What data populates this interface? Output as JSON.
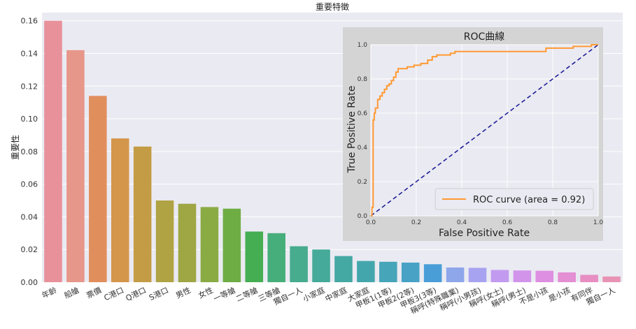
{
  "chart_data": [
    {
      "type": "bar",
      "title": "重要特徵",
      "xlabel": "",
      "ylabel": "重要性",
      "ylim": [
        0,
        0.165
      ],
      "yticks": [
        "0.00",
        "0.02",
        "0.04",
        "0.06",
        "0.08",
        "0.10",
        "0.12",
        "0.14",
        "0.16"
      ],
      "grid": true,
      "categories": [
        "年齡",
        "船艙",
        "票價",
        "C港口",
        "Q港口",
        "S港口",
        "男性",
        "女性",
        "一等艙",
        "二等艙",
        "三等艙",
        "獨自一人",
        "小家庭",
        "中家庭",
        "大家庭",
        "甲板1(1等)",
        "甲板2(2等)",
        "甲板3(3等)",
        "稱呼(特殊職業)",
        "稱呼(小男孩)",
        "稱呼(女士)",
        "稱呼(男士)",
        "不是小孩",
        "是小孩",
        "有同伴",
        "獨自一人"
      ],
      "values": [
        0.16,
        0.142,
        0.114,
        0.088,
        0.083,
        0.05,
        0.048,
        0.046,
        0.045,
        0.031,
        0.03,
        0.022,
        0.02,
        0.016,
        0.013,
        0.0125,
        0.012,
        0.011,
        0.009,
        0.0088,
        0.0075,
        0.0072,
        0.007,
        0.006,
        0.0045,
        0.0035
      ],
      "colors": [
        "#e8919b",
        "#e7968a",
        "#e18e5d",
        "#d4964a",
        "#c49c45",
        "#b0a344",
        "#9ea744",
        "#8aab44",
        "#6ead44",
        "#45ae53",
        "#46ae7a",
        "#46ac8d",
        "#45aa99",
        "#44a8a3",
        "#44a6ad",
        "#46a5b8",
        "#48a2c6",
        "#4a9ed8",
        "#8ea6ea",
        "#a8a3f0",
        "#c29bf0",
        "#d294eb",
        "#de8fe1",
        "#e48ed4",
        "#e78ec3",
        "#e893b4"
      ]
    },
    {
      "type": "line",
      "title": "ROC曲線",
      "xlabel": "False Positive Rate",
      "ylabel": "True Positive Rate",
      "xlim": [
        0,
        1
      ],
      "ylim": [
        0,
        1
      ],
      "xticks": [
        "0.0",
        "0.2",
        "0.4",
        "0.6",
        "0.8",
        "1.0"
      ],
      "yticks": [
        "0.0",
        "0.2",
        "0.4",
        "0.6",
        "0.8",
        "1.0"
      ],
      "grid": true,
      "legend_position": "bottom-right",
      "series": [
        {
          "name": "ROC curve (area = 0.92)",
          "color": "#ff9933",
          "x": [
            0.0,
            0.005,
            0.005,
            0.01,
            0.01,
            0.015,
            0.015,
            0.02,
            0.02,
            0.03,
            0.03,
            0.04,
            0.04,
            0.05,
            0.05,
            0.06,
            0.06,
            0.07,
            0.07,
            0.08,
            0.08,
            0.09,
            0.09,
            0.1,
            0.1,
            0.11,
            0.11,
            0.12,
            0.12,
            0.14,
            0.14,
            0.16,
            0.16,
            0.19,
            0.19,
            0.22,
            0.22,
            0.25,
            0.25,
            0.27,
            0.27,
            0.29,
            0.29,
            0.35,
            0.35,
            0.37,
            0.37,
            0.77,
            0.77,
            0.89,
            0.89,
            0.97,
            0.97,
            1.0
          ],
          "y": [
            0.0,
            0.0,
            0.05,
            0.05,
            0.56,
            0.56,
            0.6,
            0.6,
            0.63,
            0.63,
            0.68,
            0.68,
            0.7,
            0.7,
            0.72,
            0.72,
            0.74,
            0.74,
            0.76,
            0.76,
            0.77,
            0.77,
            0.79,
            0.79,
            0.81,
            0.81,
            0.84,
            0.84,
            0.86,
            0.86,
            0.86,
            0.86,
            0.87,
            0.87,
            0.88,
            0.88,
            0.89,
            0.89,
            0.91,
            0.91,
            0.93,
            0.93,
            0.94,
            0.94,
            0.95,
            0.95,
            0.96,
            0.96,
            0.98,
            0.98,
            0.99,
            0.99,
            1.0,
            1.0
          ]
        },
        {
          "name": "",
          "color": "#1f1f99",
          "dashed": true,
          "x": [
            0,
            1
          ],
          "y": [
            0,
            1
          ]
        }
      ]
    }
  ]
}
